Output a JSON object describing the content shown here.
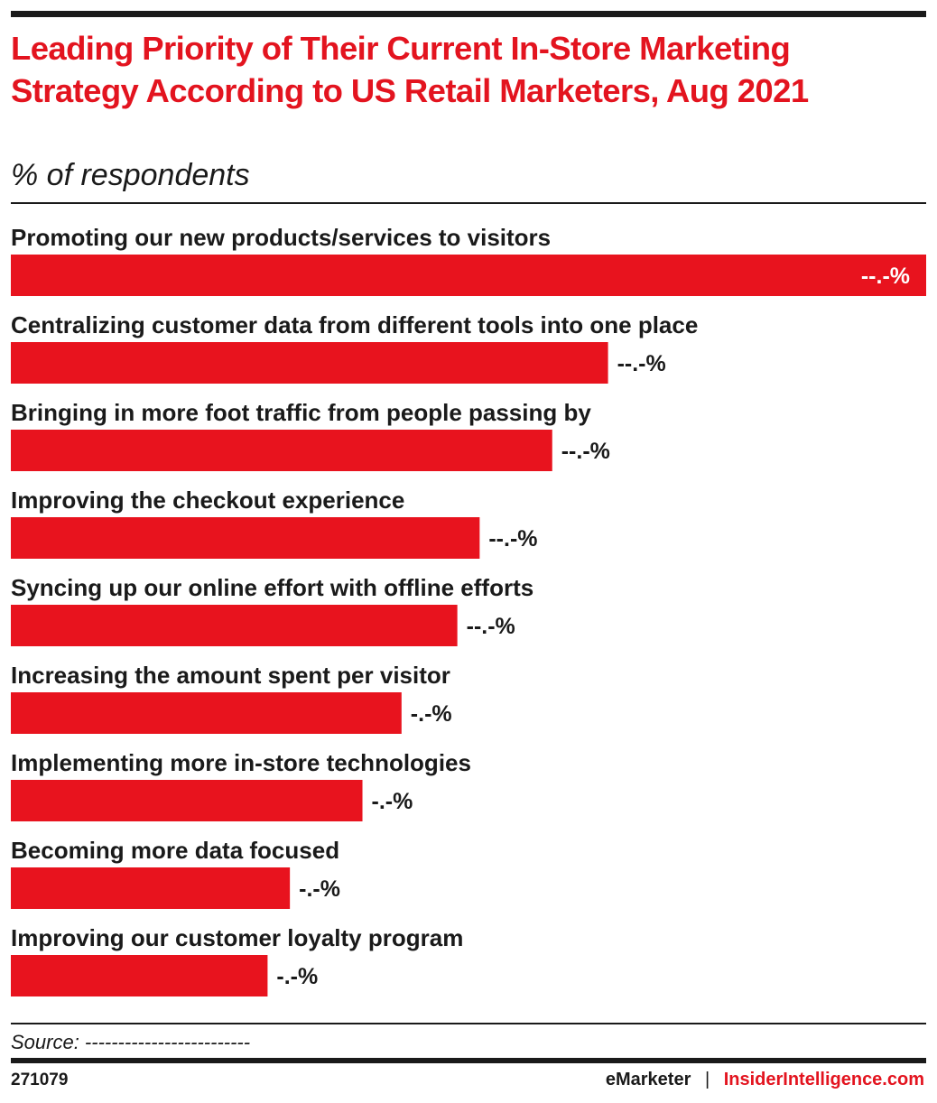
{
  "header": {
    "title": "Leading Priority of Their Current In-Store Marketing Strategy According to US Retail Marketers, Aug 2021",
    "subtitle": "% of respondents"
  },
  "chart_data": {
    "type": "bar",
    "orientation": "horizontal",
    "title": "Leading Priority of Their Current In-Store Marketing Strategy According to US Retail Marketers, Aug 2021",
    "subtitle": "% of respondents",
    "categories": [
      "Promoting our new products/services to visitors",
      "Centralizing customer data from different tools into one place",
      "Bringing in more foot traffic from people passing by",
      "Improving the checkout experience",
      "Syncing up our online effort with offline efforts",
      "Increasing the amount spent per visitor",
      "Implementing more in-store technologies",
      "Becoming more data focused",
      "Improving our customer loyalty program"
    ],
    "values": [
      16.4,
      10.7,
      9.7,
      8.4,
      8.0,
      7.0,
      6.3,
      5.0,
      4.6
    ],
    "value_labels": [
      "--.-%",
      "--.-%",
      "--.-%",
      "--.-%",
      "--.-%",
      "-.-%",
      "-.-%",
      "-.-%",
      "-.-%"
    ],
    "xlim": [
      0,
      16.4
    ],
    "grid": false,
    "legend": "none",
    "bar_color": "#e8131e"
  },
  "footer": {
    "source": "Source: -------------------------",
    "chart_id": "271079",
    "brand_left": "eMarketer",
    "separator": "|",
    "brand_right": "InsiderIntelligence.com"
  }
}
